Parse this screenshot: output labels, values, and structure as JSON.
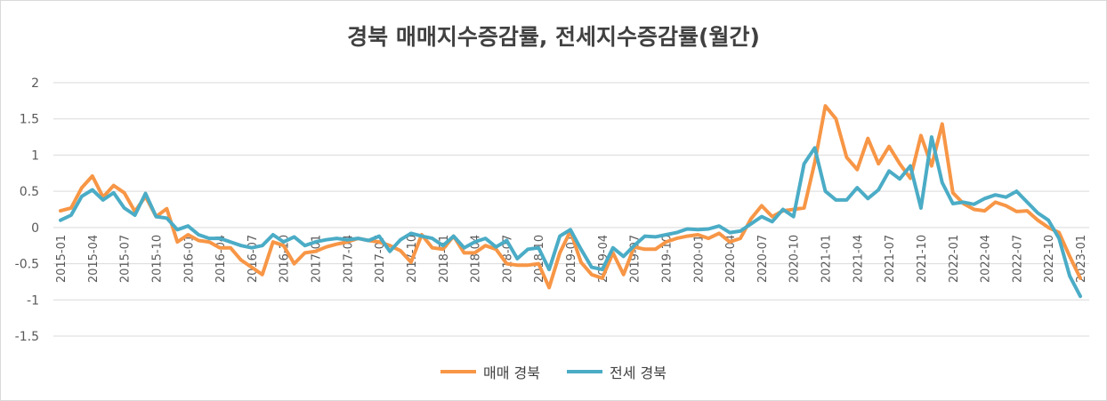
{
  "chart_data": {
    "type": "line",
    "title": "경북 매매지수증감률, 전세지수증감률(월간)",
    "xlabel": "",
    "ylabel": "",
    "ylim": [
      -1.5,
      2
    ],
    "yticks": [
      "2",
      "1.5",
      "1",
      "0.5",
      "0",
      "-0.5",
      "-1",
      "-1.5"
    ],
    "grid": true,
    "legend_position": "bottom",
    "x": [
      "2015-01",
      "2015-02",
      "2015-03",
      "2015-04",
      "2015-05",
      "2015-06",
      "2015-07",
      "2015-08",
      "2015-09",
      "2015-10",
      "2015-11",
      "2015-12",
      "2016-01",
      "2016-02",
      "2016-03",
      "2016-04",
      "2016-05",
      "2016-06",
      "2016-07",
      "2016-08",
      "2016-09",
      "2016-10",
      "2016-11",
      "2016-12",
      "2017-01",
      "2017-02",
      "2017-03",
      "2017-04",
      "2017-05",
      "2017-06",
      "2017-07",
      "2017-08",
      "2017-09",
      "2017-10",
      "2017-11",
      "2017-12",
      "2018-01",
      "2018-02",
      "2018-03",
      "2018-04",
      "2018-05",
      "2018-06",
      "2018-07",
      "2018-08",
      "2018-09",
      "2018-10",
      "2018-11",
      "2018-12",
      "2019-01",
      "2019-02",
      "2019-03",
      "2019-04",
      "2019-05",
      "2019-06",
      "2019-07",
      "2019-08",
      "2019-09",
      "2019-10",
      "2019-11",
      "2019-12",
      "2020-01",
      "2020-02",
      "2020-03",
      "2020-04",
      "2020-05",
      "2020-06",
      "2020-07",
      "2020-08",
      "2020-09",
      "2020-10",
      "2020-11",
      "2020-12",
      "2021-01",
      "2021-02",
      "2021-03",
      "2021-04",
      "2021-05",
      "2021-06",
      "2021-07",
      "2021-08",
      "2021-09",
      "2021-10",
      "2021-11",
      "2021-12",
      "2022-01",
      "2022-02",
      "2022-03",
      "2022-04",
      "2022-05",
      "2022-06",
      "2022-07",
      "2022-08",
      "2022-09",
      "2022-10",
      "2022-11",
      "2022-12",
      "2023-01"
    ],
    "x_tick_labels": [
      "2015-01",
      "2015-04",
      "2015-07",
      "2015-10",
      "2016-01",
      "2016-04",
      "2016-07",
      "2016-10",
      "2017-01",
      "2017-04",
      "2017-07",
      "2017-10",
      "2018-01",
      "2018-04",
      "2018-07",
      "2018-10",
      "2019-01",
      "2019-04",
      "2019-07",
      "2019-10",
      "2020-01",
      "2020-04",
      "2020-07",
      "2020-10",
      "2021-01",
      "2021-04",
      "2021-07",
      "2021-10",
      "2022-01",
      "2022-04",
      "2022-07",
      "2022-10",
      "2023-01"
    ],
    "series": [
      {
        "name": "매매 경북",
        "color": "#f79646",
        "values": [
          0.23,
          0.27,
          0.55,
          0.71,
          0.42,
          0.58,
          0.48,
          0.22,
          0.43,
          0.15,
          0.26,
          -0.2,
          -0.1,
          -0.18,
          -0.2,
          -0.28,
          -0.28,
          -0.45,
          -0.55,
          -0.65,
          -0.2,
          -0.25,
          -0.5,
          -0.35,
          -0.33,
          -0.27,
          -0.23,
          -0.2,
          -0.15,
          -0.18,
          -0.2,
          -0.25,
          -0.32,
          -0.48,
          -0.1,
          -0.28,
          -0.3,
          -0.12,
          -0.35,
          -0.35,
          -0.25,
          -0.3,
          -0.5,
          -0.52,
          -0.52,
          -0.5,
          -0.83,
          -0.35,
          -0.05,
          -0.48,
          -0.65,
          -0.7,
          -0.35,
          -0.65,
          -0.27,
          -0.3,
          -0.3,
          -0.2,
          -0.15,
          -0.12,
          -0.1,
          -0.15,
          -0.08,
          -0.2,
          -0.15,
          0.12,
          0.3,
          0.15,
          0.23,
          0.25,
          0.27,
          0.9,
          1.68,
          1.5,
          0.97,
          0.8,
          1.23,
          0.88,
          1.12,
          0.88,
          0.68,
          1.27,
          0.85,
          1.43,
          0.48,
          0.33,
          0.25,
          0.23,
          0.35,
          0.3,
          0.22,
          0.23,
          0.1,
          0.0,
          -0.07,
          -0.4,
          -0.7
        ]
      },
      {
        "name": "전세 경북",
        "color": "#4bacc6",
        "values": [
          0.1,
          0.17,
          0.43,
          0.52,
          0.38,
          0.48,
          0.27,
          0.17,
          0.47,
          0.15,
          0.13,
          -0.03,
          0.02,
          -0.1,
          -0.15,
          -0.15,
          -0.2,
          -0.25,
          -0.28,
          -0.25,
          -0.1,
          -0.2,
          -0.13,
          -0.25,
          -0.2,
          -0.17,
          -0.15,
          -0.17,
          -0.15,
          -0.18,
          -0.12,
          -0.33,
          -0.17,
          -0.08,
          -0.12,
          -0.15,
          -0.25,
          -0.12,
          -0.28,
          -0.2,
          -0.15,
          -0.27,
          -0.18,
          -0.43,
          -0.3,
          -0.28,
          -0.58,
          -0.12,
          -0.03,
          -0.3,
          -0.55,
          -0.58,
          -0.28,
          -0.4,
          -0.25,
          -0.12,
          -0.13,
          -0.1,
          -0.07,
          -0.02,
          -0.03,
          -0.02,
          0.02,
          -0.07,
          -0.05,
          0.05,
          0.15,
          0.08,
          0.25,
          0.15,
          0.88,
          1.1,
          0.5,
          0.38,
          0.38,
          0.55,
          0.4,
          0.52,
          0.78,
          0.67,
          0.85,
          0.27,
          1.25,
          0.62,
          0.33,
          0.35,
          0.32,
          0.4,
          0.45,
          0.42,
          0.5,
          0.35,
          0.2,
          0.1,
          -0.15,
          -0.67,
          -0.95
        ]
      }
    ]
  }
}
